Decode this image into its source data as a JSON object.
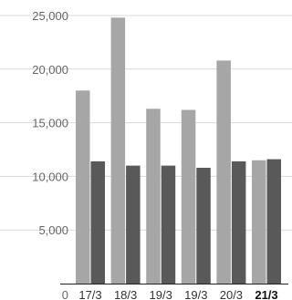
{
  "chart_data": {
    "type": "bar",
    "categories": [
      "17/3",
      "18/3",
      "19/3",
      "19/3",
      "20/3",
      "21/3"
    ],
    "highlighted_category_index": 5,
    "series": [
      {
        "values": [
          18000,
          24800,
          16300,
          16200,
          20800,
          11500
        ],
        "color": "#a6a6a6"
      },
      {
        "values": [
          11400,
          11000,
          11000,
          10800,
          11400,
          11600
        ],
        "color": "#595959"
      }
    ],
    "ylim": [
      0,
      25000
    ],
    "y_ticks": [
      0,
      5000,
      10000,
      15000,
      20000,
      25000
    ],
    "y_tick_labels": [
      "0",
      "5,000",
      "10,000",
      "15,000",
      "20,000",
      "25,000"
    ],
    "grid": true,
    "gridline_color": "#d9d9d9",
    "axis_color": "#222222"
  }
}
